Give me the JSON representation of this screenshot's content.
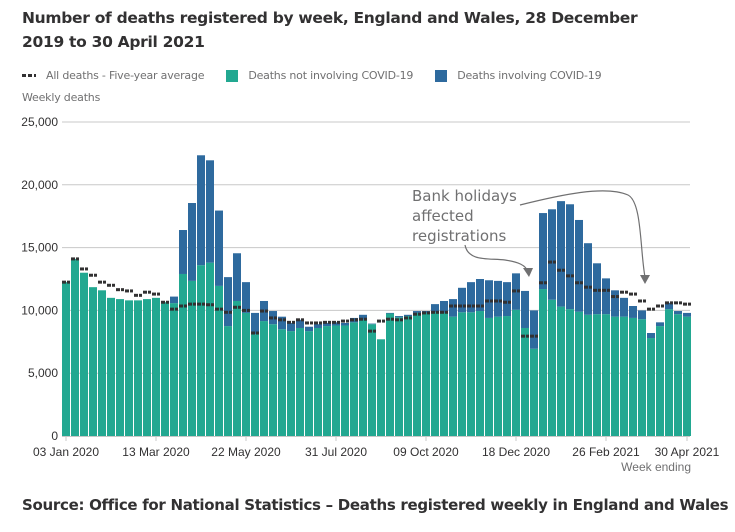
{
  "title": "Number of deaths registered by week, England and Wales, 28 December 2019 to 30 April 2021",
  "legend": [
    {
      "label": "All deaths - Five-year average",
      "type": "dash",
      "color": "#323132"
    },
    {
      "label": "Deaths not involving COVID-19",
      "type": "swatch",
      "color": "#22a891"
    },
    {
      "label": "Deaths involving COVID-19",
      "type": "swatch",
      "color": "#2e6a9e"
    }
  ],
  "source": "Source: Office for National Statistics – Deaths registered weekly in England and Wales",
  "chart_data": {
    "type": "bar",
    "stacked": true,
    "title": "Number of deaths registered by week, England and Wales, 28 December 2019 to 30 April 2021",
    "ylabel": "Weekly deaths",
    "xlabel": "Week ending",
    "ylim": [
      0,
      25000
    ],
    "yticks": [
      0,
      5000,
      10000,
      15000,
      20000,
      25000
    ],
    "ytick_labels": [
      "0",
      "5,000",
      "10,000",
      "15,000",
      "20,000",
      "25,000"
    ],
    "xtick_labels": [
      {
        "index": 0,
        "label": "03 Jan 2020"
      },
      {
        "index": 10,
        "label": "13 Mar 2020"
      },
      {
        "index": 20,
        "label": "22 May 2020"
      },
      {
        "index": 30,
        "label": "31 Jul 2020"
      },
      {
        "index": 40,
        "label": "09 Oct 2020"
      },
      {
        "index": 50,
        "label": "18 Dec 2020"
      },
      {
        "index": 60,
        "label": "26 Feb 2021"
      },
      {
        "index": 69,
        "label": "30 Apr 2021"
      }
    ],
    "grid": true,
    "legend_position": "top-left",
    "weeks": 70,
    "series": [
      {
        "name": "Deaths not involving COVID-19",
        "color": "#22a891",
        "values": [
          12250,
          14100,
          13000,
          11850,
          11600,
          11000,
          10900,
          10800,
          10800,
          10900,
          11000,
          10650,
          10580,
          12900,
          12350,
          13600,
          13800,
          11950,
          8750,
          10750,
          9800,
          8100,
          9150,
          8900,
          8500,
          8350,
          8600,
          8350,
          8600,
          8750,
          8800,
          8800,
          9050,
          9250,
          8900,
          7700,
          9750,
          9450,
          9550,
          9800,
          9800,
          9850,
          9800,
          9500,
          9850,
          9850,
          9950,
          9400,
          9500,
          9550,
          10050,
          8600,
          6950,
          11700,
          10850,
          10300,
          10100,
          9900,
          9650,
          9700,
          9700,
          9500,
          9500,
          9400,
          9300,
          7800,
          8750,
          10100,
          9700,
          9500
        ]
      },
      {
        "name": "Deaths involving COVID-19",
        "color": "#2e6a9e",
        "values": [
          0,
          0,
          0,
          0,
          0,
          0,
          0,
          0,
          0,
          0,
          0,
          0,
          520,
          3500,
          6200,
          8750,
          8150,
          6000,
          3900,
          3800,
          2450,
          1700,
          1600,
          1050,
          1000,
          650,
          650,
          350,
          300,
          250,
          250,
          200,
          350,
          400,
          50,
          0,
          50,
          100,
          100,
          150,
          150,
          650,
          950,
          1400,
          1950,
          2400,
          2550,
          3000,
          2850,
          2700,
          2900,
          2950,
          3050,
          6050,
          7200,
          8400,
          8350,
          7300,
          5700,
          4050,
          2850,
          2100,
          1500,
          950,
          700,
          400,
          300,
          500,
          250,
          300
        ]
      },
      {
        "name": "All deaths - Five-year average",
        "type": "line-dashed",
        "color": "#323132",
        "values": [
          12250,
          14100,
          13300,
          12800,
          12250,
          12000,
          11650,
          11550,
          11200,
          11450,
          11300,
          10650,
          10100,
          10350,
          10500,
          10500,
          10450,
          10100,
          9850,
          10250,
          10000,
          8200,
          9950,
          9400,
          9250,
          9050,
          9250,
          9000,
          9000,
          9050,
          9050,
          9150,
          9250,
          9300,
          8350,
          9150,
          9300,
          9250,
          9400,
          9700,
          9800,
          9850,
          9850,
          10350,
          10350,
          10350,
          10350,
          10750,
          10750,
          10650,
          11550,
          7950,
          7950,
          12200,
          13850,
          13200,
          12750,
          12200,
          11850,
          11600,
          11600,
          11100,
          11450,
          11300,
          10750,
          10100,
          10350,
          10600,
          10600,
          10500
        ]
      }
    ],
    "annotations": [
      {
        "text": [
          "Bank holidays",
          "affected",
          "registrations"
        ],
        "points_to_weeks": [
          51,
          66
        ]
      }
    ]
  }
}
